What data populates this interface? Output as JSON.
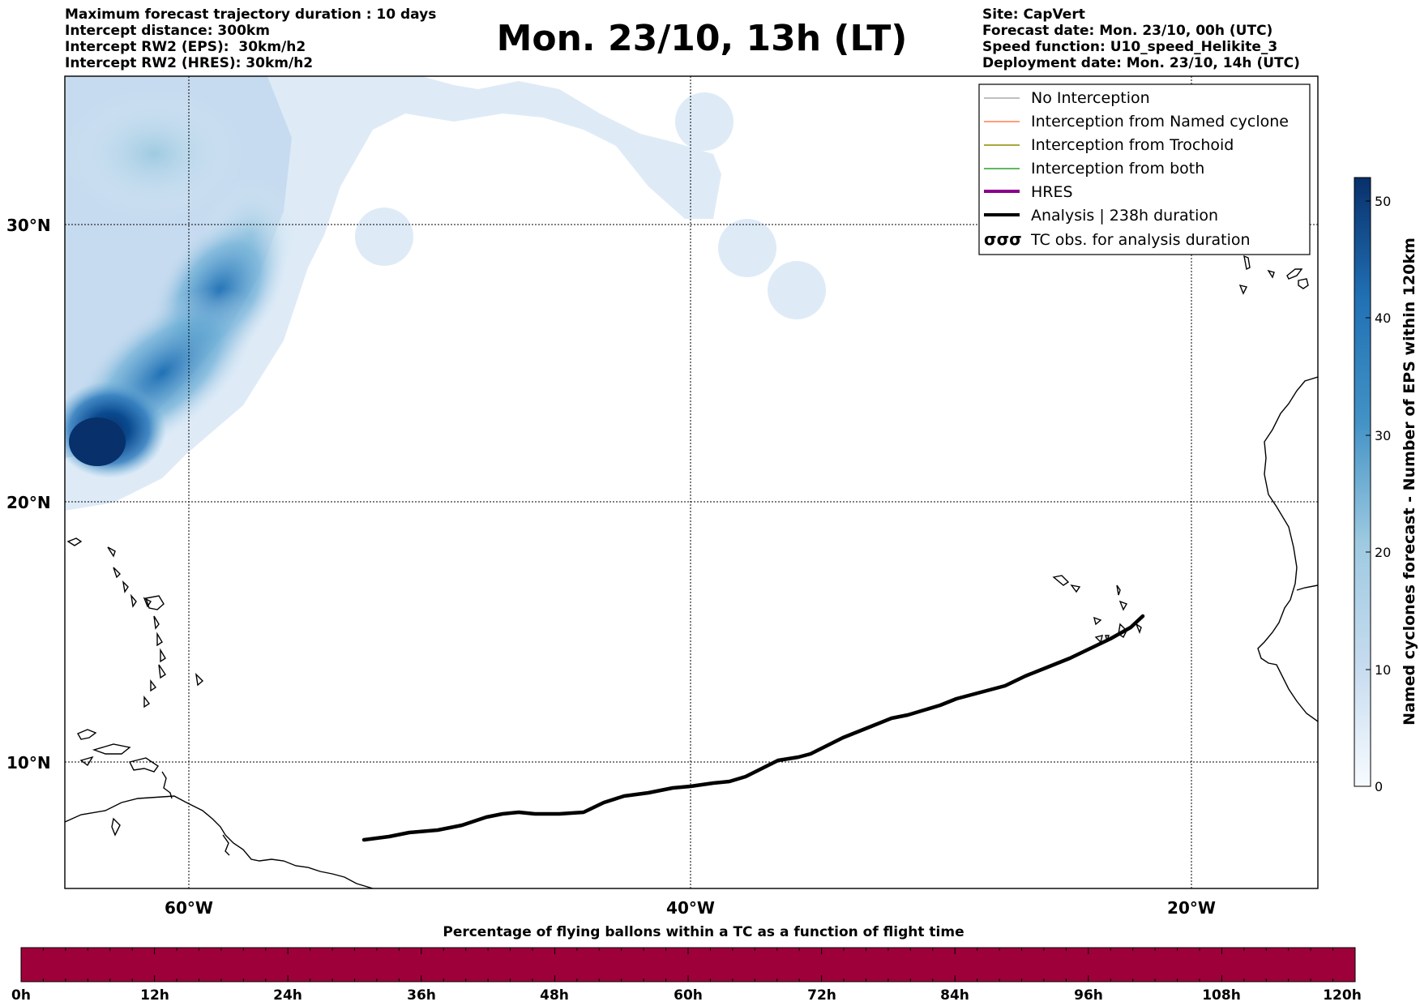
{
  "header": {
    "left_lines": [
      "Maximum forecast trajectory duration : 10 days",
      "Intercept distance: 300km",
      "Intercept RW2 (EPS):  30km/h2",
      "Intercept RW2 (HRES): 30km/h2"
    ],
    "title": "Mon. 23/10, 13h (LT)",
    "right_lines": [
      "Site: CapVert",
      "Forecast date: Mon. 23/10, 00h (UTC)",
      "Speed function: U10_speed_Helikite_3",
      "Deployment date: Mon. 23/10, 14h (UTC)"
    ]
  },
  "map": {
    "lat_labels": [
      "30°N",
      "20°N",
      "10°N"
    ],
    "lon_labels": [
      "60°W",
      "40°W",
      "20°W"
    ],
    "track_color": "#000000",
    "density_colormap": "Blues"
  },
  "legend": {
    "items": [
      {
        "label": "No Interception",
        "color": "#808080",
        "style": "thin"
      },
      {
        "label": "Interception from Named cyclone",
        "color": "#ff7f50",
        "style": "thin"
      },
      {
        "label": "Interception from Trochoid",
        "color": "#8b8b00",
        "style": "thin"
      },
      {
        "label": "Interception from both",
        "color": "#2ca02c",
        "style": "thin"
      },
      {
        "label": "HRES",
        "color": "#8b008b",
        "style": "thick"
      },
      {
        "label": "Analysis | 238h duration",
        "color": "#000000",
        "style": "thick"
      },
      {
        "label": "TC obs. for analysis duration",
        "color": "#000000",
        "style": "symbol",
        "symbol": "σσσ"
      }
    ]
  },
  "colorbar": {
    "label": "Named cyclones forecast - Number of EPS within 120km",
    "ticks": [
      "0",
      "10",
      "20",
      "30",
      "40",
      "50"
    ],
    "range": [
      0,
      52
    ]
  },
  "flight_bar": {
    "title": "Percentage of flying ballons within a TC as a function of flight time",
    "ticks": [
      "0h",
      "12h",
      "24h",
      "36h",
      "48h",
      "60h",
      "72h",
      "84h",
      "96h",
      "108h",
      "120h"
    ],
    "color": "#9e003a"
  }
}
